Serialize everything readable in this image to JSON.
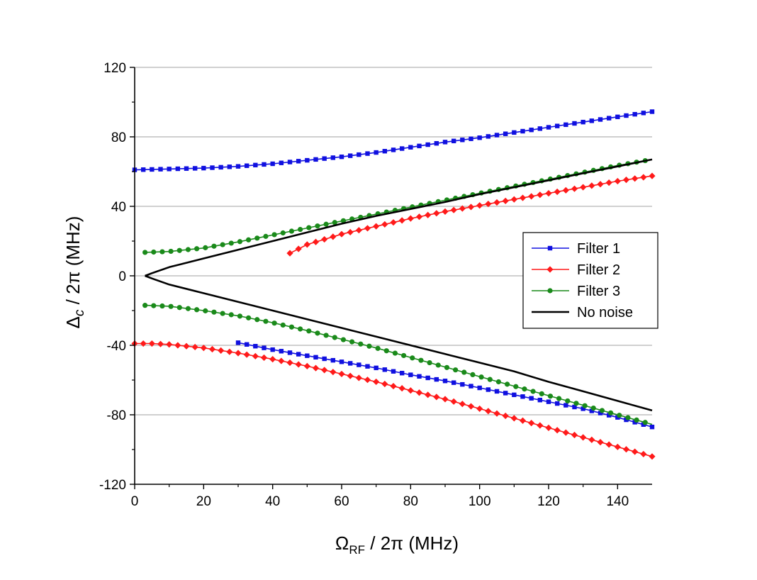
{
  "chart_data": {
    "type": "line",
    "title": "",
    "xlabel": {
      "main": "Ω",
      "sub": "RF",
      "rest": " / 2π (MHz)"
    },
    "ylabel": {
      "main": "Δ",
      "sub": "c",
      "rest": " / 2π (MHz)"
    },
    "xlim": [
      0,
      150
    ],
    "ylim": [
      -120,
      120
    ],
    "xticks": [
      0,
      20,
      40,
      60,
      80,
      100,
      120,
      140
    ],
    "yticks": [
      -120,
      -80,
      -40,
      0,
      40,
      80,
      120
    ],
    "grid": "horizontal",
    "legend_position": "center-right",
    "series": [
      {
        "name": "Filter 1",
        "color": "#1010e0",
        "marker": "square",
        "branches": [
          {
            "x": [
              0,
              10,
              20,
              30,
              40,
              50,
              60,
              70,
              80,
              90,
              100,
              110,
              120,
              130,
              140,
              150
            ],
            "y": [
              61,
              61.5,
              62,
              63,
              64.5,
              66.5,
              68.5,
              71,
              74,
              77,
              79.5,
              82.5,
              85.5,
              88.5,
              91.5,
              94.5
            ]
          },
          {
            "x": [
              30,
              40,
              50,
              60,
              70,
              80,
              90,
              100,
              110,
              120,
              130,
              140,
              150
            ],
            "y": [
              -38.5,
              -42.5,
              -46,
              -49.5,
              -53,
              -57,
              -60.5,
              -64.5,
              -68.5,
              -72.5,
              -76.5,
              -81.5,
              -87
            ]
          }
        ]
      },
      {
        "name": "Filter 2",
        "color": "#ff1a1a",
        "marker": "diamond",
        "branches": [
          {
            "x": [
              45,
              47,
              50,
              55,
              60,
              70,
              80,
              90,
              100,
              110,
              120,
              130,
              140,
              150
            ],
            "y": [
              13,
              15,
              18,
              21,
              24,
              28.5,
              33,
              37,
              40.5,
              44,
              47.5,
              51,
              54.5,
              57.5
            ]
          },
          {
            "x": [
              0,
              5,
              10,
              20,
              30,
              40,
              50,
              60,
              70,
              80,
              90,
              100,
              110,
              120,
              130,
              140,
              150
            ],
            "y": [
              -39,
              -39,
              -39.5,
              -41.5,
              -44.5,
              -48,
              -52,
              -56.5,
              -61,
              -66,
              -71,
              -76.5,
              -82,
              -87.5,
              -93,
              -98.5,
              -104
            ]
          }
        ]
      },
      {
        "name": "Filter 3",
        "color": "#1a8a1a",
        "marker": "circle",
        "branches": [
          {
            "x": [
              3,
              10,
              20,
              30,
              40,
              50,
              60,
              70,
              80,
              90,
              100,
              110,
              120,
              130,
              140,
              150
            ],
            "y": [
              13.5,
              14,
              16,
              19.5,
              23.5,
              27.5,
              31.5,
              35.5,
              39.5,
              43.5,
              47.5,
              51.5,
              55.5,
              59.5,
              63.5,
              67
            ]
          },
          {
            "x": [
              3,
              10,
              20,
              30,
              40,
              50,
              60,
              70,
              80,
              90,
              100,
              110,
              120,
              130,
              140,
              150
            ],
            "y": [
              -17,
              -17.5,
              -20,
              -23,
              -27,
              -31.5,
              -36.5,
              -41.5,
              -47,
              -52.5,
              -58,
              -63.5,
              -69,
              -74.5,
              -80,
              -85.5
            ]
          }
        ]
      },
      {
        "name": "No noise",
        "color": "#000000",
        "marker": "none",
        "branches": [
          {
            "x": [
              3,
              5,
              10,
              20,
              30,
              40,
              50,
              60,
              70,
              80,
              90,
              100,
              110,
              120,
              130,
              140,
              150
            ],
            "y": [
              0,
              1.5,
              5,
              10,
              15,
              20,
              25,
              30,
              34.5,
              38.5,
              42.5,
              47,
              51,
              55,
              59,
              63,
              67
            ]
          },
          {
            "x": [
              3,
              5,
              10,
              20,
              30,
              40,
              50,
              60,
              70,
              80,
              90,
              100,
              110,
              120,
              130,
              140,
              150
            ],
            "y": [
              0,
              -1.5,
              -5,
              -10,
              -15,
              -20,
              -25,
              -30,
              -35,
              -40,
              -45,
              -50,
              -55,
              -61,
              -66.5,
              -72,
              -77.5
            ]
          }
        ]
      }
    ]
  }
}
